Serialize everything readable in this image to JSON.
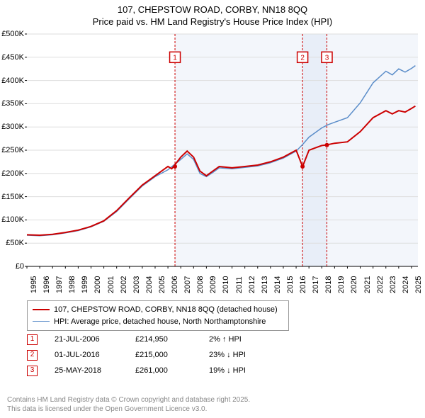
{
  "title": {
    "line1": "107, CHEPSTOW ROAD, CORBY, NN18 8QQ",
    "line2": "Price paid vs. HM Land Registry's House Price Index (HPI)"
  },
  "chart": {
    "type": "line",
    "background_color": "#ffffff",
    "grid_color": "#dddddd",
    "tick_color": "#000000",
    "x_years": [
      1995,
      1996,
      1997,
      1998,
      1999,
      2000,
      2001,
      2002,
      2003,
      2004,
      2005,
      2006,
      2007,
      2008,
      2009,
      2010,
      2011,
      2012,
      2013,
      2014,
      2015,
      2016,
      2017,
      2018,
      2019,
      2020,
      2021,
      2022,
      2023,
      2024,
      2025
    ],
    "y_ticks": [
      0,
      50000,
      100000,
      150000,
      200000,
      250000,
      300000,
      350000,
      400000,
      450000,
      500000
    ],
    "y_tick_labels": [
      "£0",
      "£50K",
      "£100K",
      "£150K",
      "£200K",
      "£250K",
      "£300K",
      "£350K",
      "£400K",
      "£450K",
      "£500K"
    ],
    "ylim": [
      0,
      500000
    ],
    "xlim": [
      1995,
      2025.5
    ],
    "label_fontsize": 11,
    "series": [
      {
        "name": "property",
        "color": "#cc0000",
        "width": 2,
        "data": [
          [
            1995,
            68000
          ],
          [
            1996,
            67000
          ],
          [
            1997,
            69000
          ],
          [
            1998,
            73000
          ],
          [
            1999,
            78000
          ],
          [
            2000,
            86000
          ],
          [
            2001,
            98000
          ],
          [
            2002,
            120000
          ],
          [
            2003,
            148000
          ],
          [
            2004,
            175000
          ],
          [
            2005,
            195000
          ],
          [
            2006,
            214950
          ],
          [
            2006.3,
            210000
          ],
          [
            2007,
            235000
          ],
          [
            2007.5,
            248000
          ],
          [
            2008,
            235000
          ],
          [
            2008.5,
            205000
          ],
          [
            2009,
            195000
          ],
          [
            2009.5,
            205000
          ],
          [
            2010,
            215000
          ],
          [
            2011,
            212000
          ],
          [
            2012,
            215000
          ],
          [
            2013,
            218000
          ],
          [
            2014,
            225000
          ],
          [
            2015,
            235000
          ],
          [
            2016,
            250000
          ],
          [
            2016.5,
            215000
          ],
          [
            2016.55,
            218000
          ],
          [
            2017,
            250000
          ],
          [
            2017.5,
            255000
          ],
          [
            2018,
            260000
          ],
          [
            2018.3,
            261000
          ],
          [
            2019,
            265000
          ],
          [
            2020,
            268000
          ],
          [
            2021,
            290000
          ],
          [
            2022,
            320000
          ],
          [
            2023,
            335000
          ],
          [
            2023.5,
            328000
          ],
          [
            2024,
            335000
          ],
          [
            2024.5,
            332000
          ],
          [
            2025,
            340000
          ],
          [
            2025.3,
            345000
          ]
        ]
      },
      {
        "name": "hpi",
        "color": "#5b8dc9",
        "width": 1.5,
        "data": [
          [
            1995,
            67000
          ],
          [
            1996,
            66000
          ],
          [
            1997,
            68000
          ],
          [
            1998,
            72000
          ],
          [
            1999,
            77000
          ],
          [
            2000,
            85000
          ],
          [
            2001,
            97000
          ],
          [
            2002,
            118000
          ],
          [
            2003,
            146000
          ],
          [
            2004,
            173000
          ],
          [
            2005,
            193000
          ],
          [
            2006,
            208000
          ],
          [
            2007,
            230000
          ],
          [
            2007.5,
            242000
          ],
          [
            2008,
            230000
          ],
          [
            2008.5,
            200000
          ],
          [
            2009,
            193000
          ],
          [
            2009.5,
            202000
          ],
          [
            2010,
            212000
          ],
          [
            2011,
            210000
          ],
          [
            2012,
            213000
          ],
          [
            2013,
            216000
          ],
          [
            2014,
            223000
          ],
          [
            2015,
            233000
          ],
          [
            2016,
            248000
          ],
          [
            2016.5,
            262000
          ],
          [
            2017,
            278000
          ],
          [
            2018,
            298000
          ],
          [
            2018.5,
            305000
          ],
          [
            2019,
            310000
          ],
          [
            2020,
            320000
          ],
          [
            2021,
            352000
          ],
          [
            2022,
            395000
          ],
          [
            2023,
            420000
          ],
          [
            2023.5,
            412000
          ],
          [
            2024,
            425000
          ],
          [
            2024.5,
            418000
          ],
          [
            2025,
            426000
          ],
          [
            2025.3,
            432000
          ]
        ]
      }
    ],
    "shade_bands": [
      {
        "from": 2006.55,
        "to": 2016.5,
        "color": "#f3f6fb"
      },
      {
        "from": 2016.5,
        "to": 2018.4,
        "color": "#e8eef8"
      },
      {
        "from": 2018.4,
        "to": 2025.5,
        "color": "#f3f6fb"
      }
    ],
    "markers": [
      {
        "label": "1",
        "x": 2006.55,
        "y_box": 450000,
        "dot_y": 214950
      },
      {
        "label": "2",
        "x": 2016.5,
        "y_box": 450000,
        "dot_y": 215000
      },
      {
        "label": "3",
        "x": 2018.4,
        "y_box": 450000,
        "dot_y": 261000
      }
    ],
    "marker_style": {
      "line_color": "#cc0000",
      "line_dash": "3,2",
      "box_border": "#cc0000",
      "box_text_color": "#cc0000",
      "box_size": 15,
      "dot_color": "#cc0000",
      "dot_radius": 3
    }
  },
  "legend": {
    "items": [
      {
        "color": "#cc0000",
        "width": 2,
        "label": "107, CHEPSTOW ROAD, CORBY, NN18 8QQ (detached house)"
      },
      {
        "color": "#5b8dc9",
        "width": 1.5,
        "label": "HPI: Average price, detached house, North Northamptonshire"
      }
    ]
  },
  "data_points": [
    {
      "marker": "1",
      "date": "21-JUL-2006",
      "price": "£214,950",
      "delta": "2% ↑ HPI"
    },
    {
      "marker": "2",
      "date": "01-JUL-2016",
      "price": "£215,000",
      "delta": "23% ↓ HPI"
    },
    {
      "marker": "3",
      "date": "25-MAY-2018",
      "price": "£261,000",
      "delta": "19% ↓ HPI"
    }
  ],
  "footer": {
    "line1": "Contains HM Land Registry data © Crown copyright and database right 2025.",
    "line2": "This data is licensed under the Open Government Licence v3.0."
  }
}
